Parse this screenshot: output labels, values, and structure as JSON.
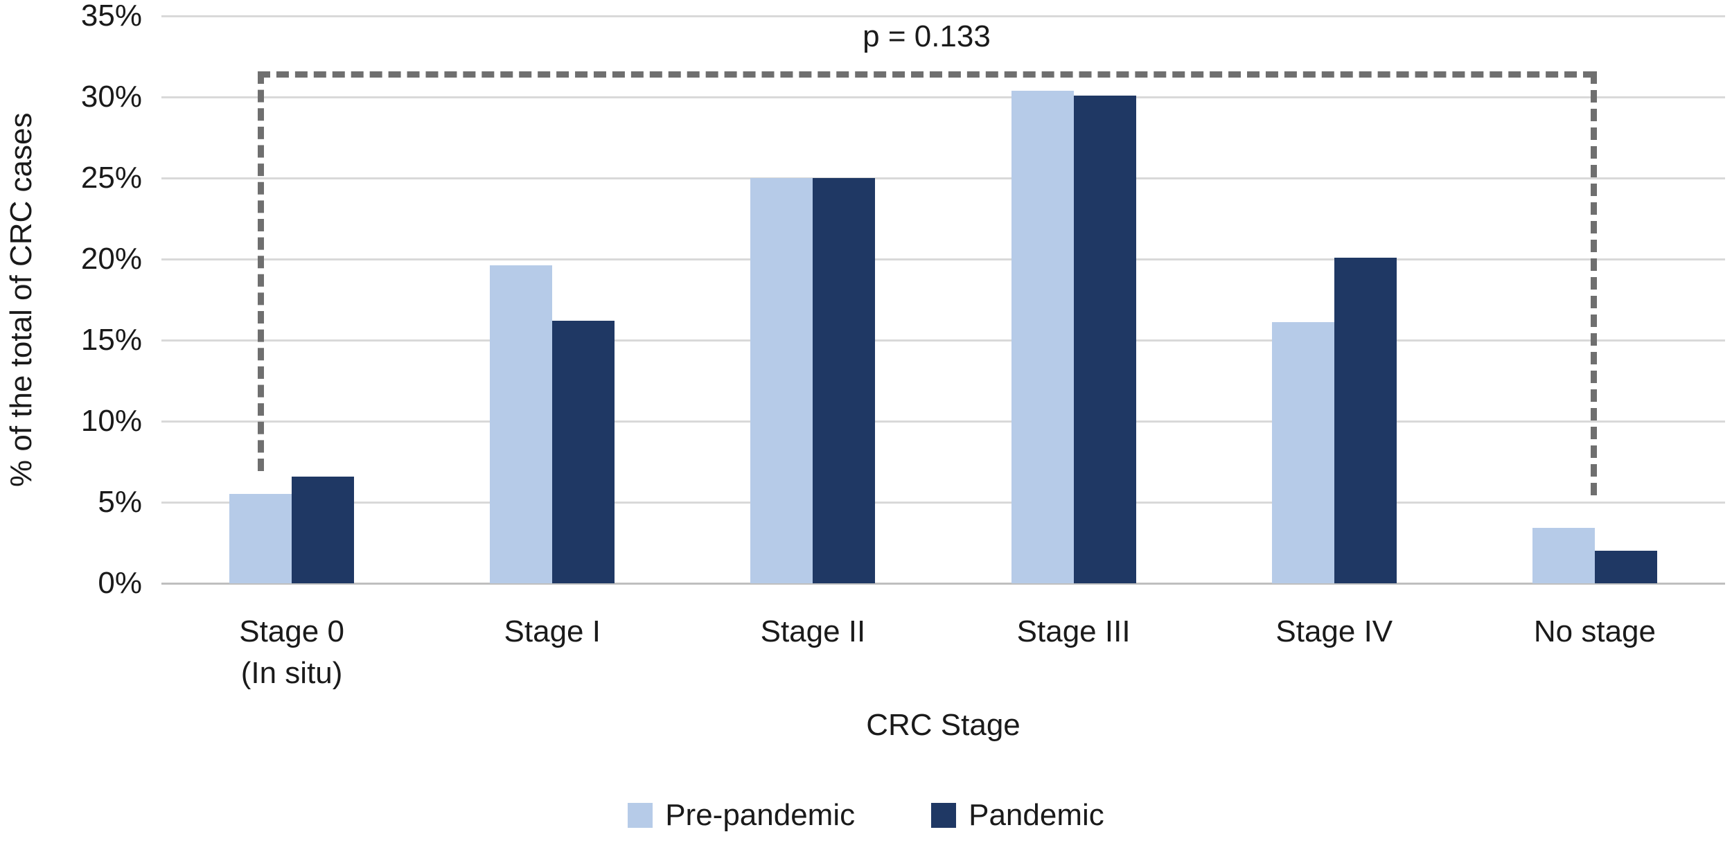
{
  "figure": {
    "background": "#FFFFFF",
    "text_color": "#1A1A1A"
  },
  "chart_data": {
    "type": "bar",
    "title": "",
    "categories": [
      {
        "lines": [
          "Stage 0",
          "(In situ)"
        ]
      },
      {
        "lines": [
          "Stage I"
        ]
      },
      {
        "lines": [
          "Stage II"
        ]
      },
      {
        "lines": [
          "Stage III"
        ]
      },
      {
        "lines": [
          "Stage IV"
        ]
      },
      {
        "lines": [
          "No stage"
        ]
      }
    ],
    "series": [
      {
        "name": "Pre-pandemic",
        "color": "#B6CBE8",
        "values": [
          5.5,
          19.6,
          25.0,
          30.4,
          16.1,
          3.4
        ]
      },
      {
        "name": "Pandemic",
        "color": "#1F3864",
        "values": [
          6.6,
          16.2,
          25.0,
          30.1,
          20.1,
          2.0
        ]
      }
    ],
    "value_unit": "percent",
    "xlabel": "CRC Stage",
    "ylabel": "% of the total of CRC cases",
    "ylim": [
      0,
      35
    ],
    "ytick_step": 5,
    "yticks": [
      "35%",
      "30%",
      "25%",
      "20%",
      "15%",
      "10%",
      "5%",
      "0%"
    ],
    "grid": true,
    "gridline_color": "#D9D9D9",
    "axis_line_color": "#BFBFBF",
    "legend_position": "bottom",
    "annotation": {
      "text": "p = 0.133",
      "bracket_style": "dashed",
      "bracket_color": "#6F6F6F",
      "spans_categories": [
        "Stage 0 (In situ)",
        "No stage"
      ]
    }
  }
}
